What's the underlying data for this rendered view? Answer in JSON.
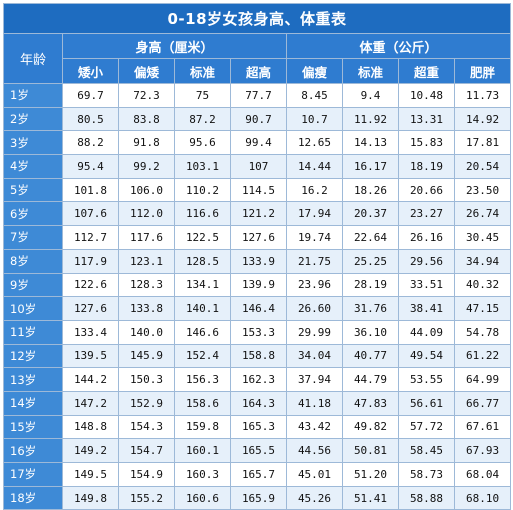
{
  "title": "0-18岁女孩身高、体重表",
  "age_header": "年龄",
  "height_group": "身高（厘米）",
  "weight_group": "体重（公斤）",
  "height_columns": [
    "矮小",
    "偏矮",
    "标准",
    "超高"
  ],
  "weight_columns": [
    "偏瘦",
    "标准",
    "超重",
    "肥胖"
  ],
  "rows": [
    {
      "age": "1岁",
      "values": [
        "69.7",
        "72.3",
        "75",
        "77.7",
        "8.45",
        "9.4",
        "10.48",
        "11.73"
      ]
    },
    {
      "age": "2岁",
      "values": [
        "80.5",
        "83.8",
        "87.2",
        "90.7",
        "10.7",
        "11.92",
        "13.31",
        "14.92"
      ]
    },
    {
      "age": "3岁",
      "values": [
        "88.2",
        "91.8",
        "95.6",
        "99.4",
        "12.65",
        "14.13",
        "15.83",
        "17.81"
      ]
    },
    {
      "age": "4岁",
      "values": [
        "95.4",
        "99.2",
        "103.1",
        "107",
        "14.44",
        "16.17",
        "18.19",
        "20.54"
      ]
    },
    {
      "age": "5岁",
      "values": [
        "101.8",
        "106.0",
        "110.2",
        "114.5",
        "16.2",
        "18.26",
        "20.66",
        "23.50"
      ]
    },
    {
      "age": "6岁",
      "values": [
        "107.6",
        "112.0",
        "116.6",
        "121.2",
        "17.94",
        "20.37",
        "23.27",
        "26.74"
      ]
    },
    {
      "age": "7岁",
      "values": [
        "112.7",
        "117.6",
        "122.5",
        "127.6",
        "19.74",
        "22.64",
        "26.16",
        "30.45"
      ]
    },
    {
      "age": "8岁",
      "values": [
        "117.9",
        "123.1",
        "128.5",
        "133.9",
        "21.75",
        "25.25",
        "29.56",
        "34.94"
      ]
    },
    {
      "age": "9岁",
      "values": [
        "122.6",
        "128.3",
        "134.1",
        "139.9",
        "23.96",
        "28.19",
        "33.51",
        "40.32"
      ]
    },
    {
      "age": "10岁",
      "values": [
        "127.6",
        "133.8",
        "140.1",
        "146.4",
        "26.60",
        "31.76",
        "38.41",
        "47.15"
      ]
    },
    {
      "age": "11岁",
      "values": [
        "133.4",
        "140.0",
        "146.6",
        "153.3",
        "29.99",
        "36.10",
        "44.09",
        "54.78"
      ]
    },
    {
      "age": "12岁",
      "values": [
        "139.5",
        "145.9",
        "152.4",
        "158.8",
        "34.04",
        "40.77",
        "49.54",
        "61.22"
      ]
    },
    {
      "age": "13岁",
      "values": [
        "144.2",
        "150.3",
        "156.3",
        "162.3",
        "37.94",
        "44.79",
        "53.55",
        "64.99"
      ]
    },
    {
      "age": "14岁",
      "values": [
        "147.2",
        "152.9",
        "158.6",
        "164.3",
        "41.18",
        "47.83",
        "56.61",
        "66.77"
      ]
    },
    {
      "age": "15岁",
      "values": [
        "148.8",
        "154.3",
        "159.8",
        "165.3",
        "43.42",
        "49.82",
        "57.72",
        "67.61"
      ]
    },
    {
      "age": "16岁",
      "values": [
        "149.2",
        "154.7",
        "160.1",
        "165.5",
        "44.56",
        "50.81",
        "58.45",
        "67.93"
      ]
    },
    {
      "age": "17岁",
      "values": [
        "149.5",
        "154.9",
        "160.3",
        "165.7",
        "45.01",
        "51.20",
        "58.73",
        "68.04"
      ]
    },
    {
      "age": "18岁",
      "values": [
        "149.8",
        "155.2",
        "160.6",
        "165.9",
        "45.26",
        "51.41",
        "58.88",
        "68.10"
      ]
    }
  ]
}
